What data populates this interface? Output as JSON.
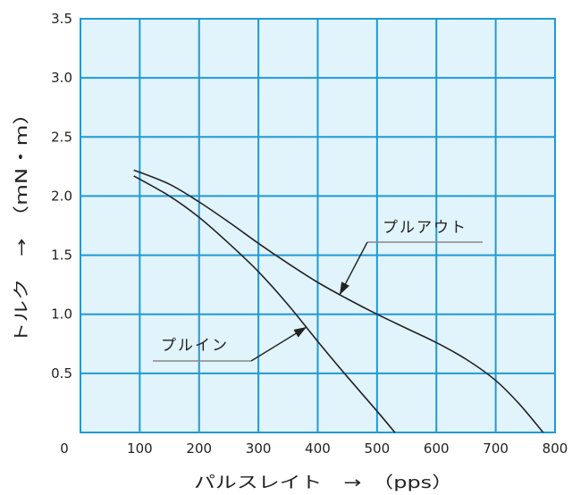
{
  "chart_data": {
    "type": "line",
    "xlabel": "パルスレイト　→　（pps）",
    "ylabel": "トルク　→　（mN・m）",
    "xlim": [
      0,
      800
    ],
    "ylim": [
      0,
      3.5
    ],
    "x_ticks": [
      "0",
      "100",
      "200",
      "300",
      "400",
      "500",
      "600",
      "700",
      "800"
    ],
    "y_ticks": [
      "0.5",
      "1.0",
      "1.5",
      "2.0",
      "2.5",
      "3.0",
      "3.5"
    ],
    "grid": true,
    "colors": {
      "background": "#e1f3fb",
      "grid": "#1f9ad6",
      "curve": "#222222"
    },
    "series": [
      {
        "name": "プルアウト",
        "x": [
          90,
          150,
          200,
          250,
          300,
          350,
          400,
          450,
          500,
          550,
          600,
          650,
          700,
          740,
          780
        ],
        "y": [
          2.22,
          2.1,
          1.95,
          1.78,
          1.6,
          1.43,
          1.27,
          1.13,
          1.0,
          0.88,
          0.76,
          0.62,
          0.44,
          0.24,
          0.0
        ]
      },
      {
        "name": "プルイン",
        "x": [
          90,
          150,
          200,
          250,
          300,
          350,
          400,
          450,
          500,
          530
        ],
        "y": [
          2.17,
          2.0,
          1.82,
          1.6,
          1.36,
          1.08,
          0.77,
          0.47,
          0.18,
          0.0
        ]
      }
    ],
    "annotations": [
      {
        "text": "プルアウト",
        "series": "プルアウト"
      },
      {
        "text": "プルイン",
        "series": "プルイン"
      }
    ]
  }
}
